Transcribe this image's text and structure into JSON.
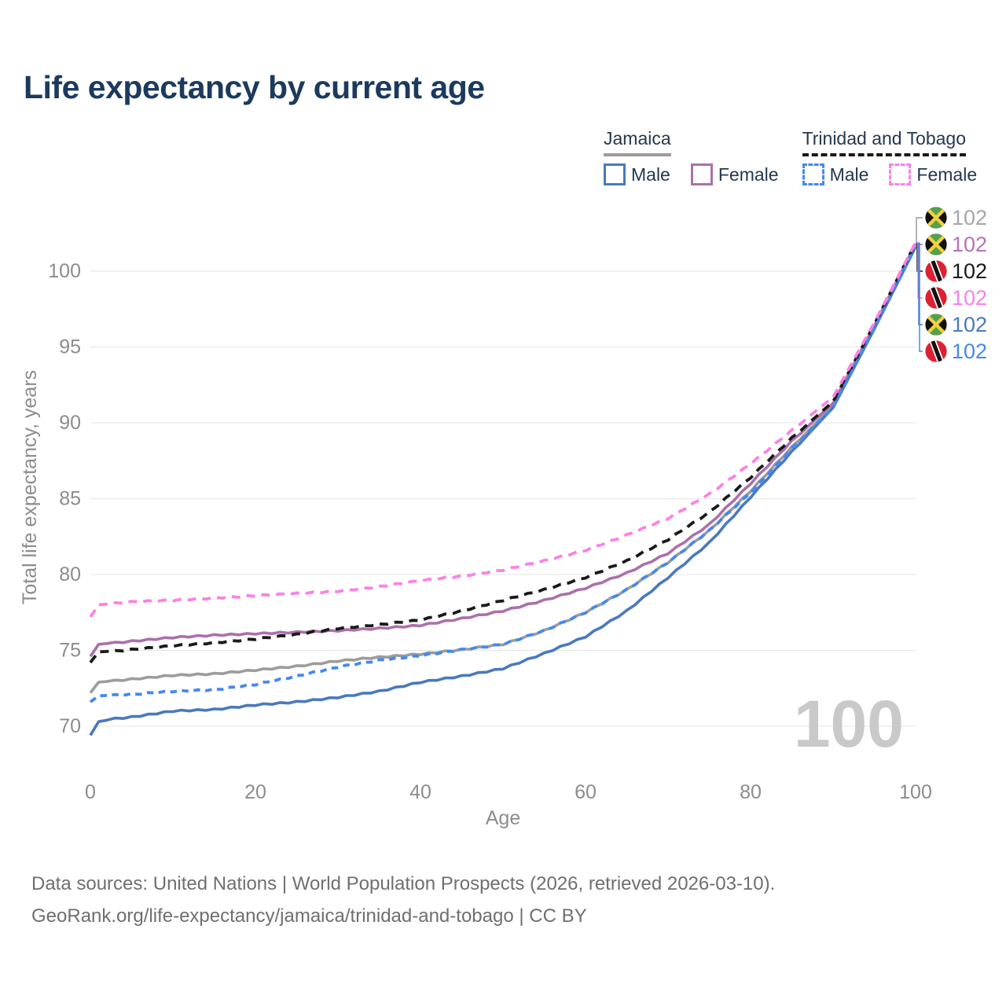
{
  "title": "Life expectancy by current age",
  "legend": {
    "groups": [
      {
        "title": "Jamaica",
        "line_style": "solid",
        "items": [
          {
            "label": "Male"
          },
          {
            "label": "Female"
          }
        ]
      },
      {
        "title": "Trinidad and Tobago",
        "line_style": "dashed",
        "items": [
          {
            "label": "Male"
          },
          {
            "label": "Female"
          }
        ]
      }
    ]
  },
  "chart_data": {
    "type": "line",
    "title": "Life expectancy by current age",
    "xlabel": "Age",
    "ylabel": "Total life expectancy, years",
    "x_ticks": [
      0,
      20,
      40,
      60,
      80,
      100
    ],
    "y_ticks": [
      70,
      75,
      80,
      85,
      90,
      95,
      100
    ],
    "xlim": [
      0,
      100
    ],
    "ylim": [
      68.5,
      103.5
    ],
    "grid": "horizontal-only",
    "legend_position": "top-right",
    "age_watermark": "100",
    "watermark_color": "#c9c9c9",
    "knot_ages": [
      0,
      1,
      3,
      5,
      10,
      15,
      20,
      25,
      30,
      35,
      40,
      45,
      50,
      55,
      60,
      65,
      70,
      75,
      80,
      85,
      90,
      95,
      100
    ],
    "series": [
      {
        "name": "Jamaica — Both sexes",
        "country": "Jamaica",
        "sex": "Both",
        "color": "#9c9c9c",
        "dash": false,
        "end_label": "102",
        "end_label_color": "#a6a6a6",
        "values": [
          72.2,
          72.9,
          73.0,
          73.1,
          73.35,
          73.45,
          73.7,
          73.95,
          74.3,
          74.55,
          74.75,
          75.05,
          75.4,
          76.3,
          77.5,
          79.0,
          80.8,
          82.9,
          85.5,
          88.4,
          91.1,
          96.3,
          101.7
        ]
      },
      {
        "name": "Jamaica — Female",
        "country": "Jamaica",
        "sex": "Female",
        "color": "#ab70ab",
        "dash": false,
        "end_label": "102",
        "end_label_color": "#b473b3",
        "values": [
          74.6,
          75.4,
          75.5,
          75.6,
          75.85,
          76.0,
          76.1,
          76.2,
          76.3,
          76.45,
          76.65,
          77.1,
          77.6,
          78.3,
          79.1,
          80.1,
          81.4,
          83.3,
          86.0,
          88.8,
          91.3,
          96.4,
          101.8
        ]
      },
      {
        "name": "Trinidad and Tobago — Both sexes",
        "country": "Trinidad and Tobago",
        "sex": "Both",
        "color": "#1a1a1a",
        "dash": true,
        "end_label": "102",
        "end_label_color": "#1a1a1a",
        "values": [
          74.2,
          74.9,
          74.95,
          75.05,
          75.3,
          75.5,
          75.75,
          76.05,
          76.45,
          76.7,
          77.0,
          77.6,
          78.3,
          79.0,
          79.8,
          80.9,
          82.3,
          84.1,
          86.4,
          89.0,
          91.4,
          96.5,
          101.85
        ]
      },
      {
        "name": "Trinidad and Tobago — Female",
        "country": "Trinidad and Tobago",
        "sex": "Female",
        "color": "#fb82e4",
        "dash": true,
        "end_label": "102",
        "end_label_color": "#fb82e4",
        "values": [
          77.2,
          78.0,
          78.1,
          78.2,
          78.3,
          78.45,
          78.6,
          78.75,
          78.9,
          79.2,
          79.6,
          79.9,
          80.3,
          80.9,
          81.6,
          82.6,
          83.7,
          85.3,
          87.3,
          89.5,
          91.7,
          96.6,
          101.9
        ]
      },
      {
        "name": "Jamaica — Male",
        "country": "Jamaica",
        "sex": "Male",
        "color": "#4a79bd",
        "dash": false,
        "end_label": "102",
        "end_label_color": "#4a79bd",
        "values": [
          69.4,
          70.3,
          70.5,
          70.6,
          71.0,
          71.1,
          71.4,
          71.6,
          71.9,
          72.3,
          72.9,
          73.3,
          73.8,
          74.8,
          75.9,
          77.6,
          79.8,
          82.1,
          85.1,
          88.1,
          91.0,
          96.2,
          101.6
        ]
      },
      {
        "name": "Trinidad and Tobago — Male",
        "country": "Trinidad and Tobago",
        "sex": "Male",
        "color": "#4489f0",
        "dash": true,
        "end_label": "102",
        "end_label_color": "#4489f0",
        "values": [
          71.6,
          72.0,
          72.05,
          72.1,
          72.3,
          72.4,
          72.75,
          73.3,
          73.9,
          74.35,
          74.65,
          75.05,
          75.4,
          76.3,
          77.5,
          79.0,
          80.8,
          82.9,
          85.4,
          88.3,
          91.0,
          96.2,
          101.6
        ]
      }
    ],
    "end_label_rows": [
      {
        "flag": "jamaica-flag-icon",
        "series": 0,
        "text": "102"
      },
      {
        "flag": "jamaica-flag-icon",
        "series": 1,
        "text": "102"
      },
      {
        "flag": "trinidad-flag-icon",
        "series": 2,
        "text": "102"
      },
      {
        "flag": "trinidad-flag-icon",
        "series": 3,
        "text": "102"
      },
      {
        "flag": "jamaica-flag-icon",
        "series": 4,
        "text": "102"
      },
      {
        "flag": "trinidad-flag-icon",
        "series": 5,
        "text": "102"
      }
    ],
    "flag_colors": {
      "jamaica": {
        "green": "#55a04e",
        "gold": "#f2d13d",
        "black": "#111111"
      },
      "trinidad": {
        "red": "#dc2232",
        "white": "#ffffff",
        "black": "#111111"
      }
    }
  },
  "footer": {
    "line1": "Data sources: United Nations | World Population Prospects (2026, retrieved 2026-03-10).",
    "line2": "GeoRank.org/life-expectancy/jamaica/trinidad-and-tobago | CC BY"
  }
}
